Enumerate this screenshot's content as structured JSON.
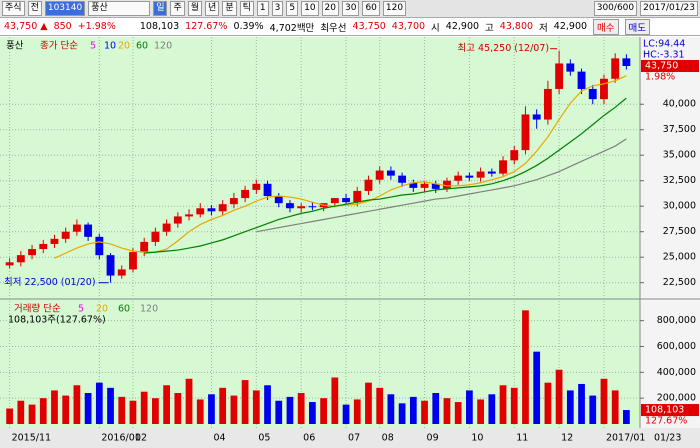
{
  "ui": {
    "toolbar": [
      "주식",
      "전",
      "103140",
      "풍산",
      "일",
      "주",
      "월",
      "년",
      "분",
      "틱",
      "1",
      "3",
      "5",
      "10",
      "20",
      "30",
      "60",
      "120",
      "300/600",
      "2017/01/23"
    ],
    "quote": {
      "price": "43,750 ▲",
      "change": "850",
      "rate": "+1.98%",
      "volume": "108,103",
      "vol_rate": "127.67%",
      "turnover": "0.39%",
      "amount": "4,702백만",
      "best": "최우선",
      "ask": "43,750",
      "bid": "43,700",
      "open_label": "시",
      "open": "42,900",
      "high_label": "고",
      "high": "43,800",
      "low_label": "저",
      "low": "42,900",
      "buy": "매수",
      "sell": "매도"
    }
  },
  "chart_data": [
    {
      "type": "candlestick",
      "title": "풍산",
      "categories": [
        "2015/11",
        null,
        null,
        null,
        null,
        null,
        null,
        null,
        "2016/01",
        null,
        null,
        "02",
        null,
        null,
        null,
        null,
        null,
        null,
        "04",
        null,
        null,
        null,
        "05",
        null,
        null,
        null,
        "06",
        null,
        null,
        null,
        "07",
        null,
        null,
        "08",
        null,
        null,
        null,
        "09",
        null,
        null,
        null,
        "10",
        null,
        null,
        null,
        "11",
        null,
        null,
        null,
        "12",
        null,
        null,
        null,
        "2017/01",
        null,
        "01/23"
      ],
      "open": [
        24200,
        24500,
        25200,
        25800,
        26300,
        26800,
        27500,
        28200,
        27000,
        25200,
        23200,
        23800,
        25500,
        26500,
        27500,
        28300,
        29000,
        29200,
        29800,
        29500,
        30200,
        30800,
        31600,
        32200,
        31000,
        30300,
        29800,
        30000,
        29900,
        30300,
        30800,
        30400,
        31500,
        32600,
        33500,
        33000,
        32300,
        31800,
        32200,
        31700,
        32500,
        33000,
        32800,
        33400,
        33200,
        34500,
        35500,
        39000,
        38500,
        41500,
        44000,
        43200,
        41500,
        40500,
        42500,
        44500
      ],
      "high": [
        24900,
        25600,
        26200,
        26700,
        27200,
        27900,
        28700,
        28400,
        27300,
        25400,
        24200,
        25900,
        26900,
        27900,
        28700,
        29400,
        29700,
        30300,
        30100,
        30600,
        31300,
        32000,
        32600,
        32500,
        31300,
        30600,
        30300,
        30400,
        30300,
        30800,
        31200,
        31900,
        33000,
        33900,
        33900,
        33300,
        32600,
        32500,
        32500,
        32800,
        33400,
        33300,
        33800,
        33700,
        34900,
        35900,
        39800,
        39500,
        42300,
        45250,
        44400,
        43500,
        41900,
        42900,
        45000,
        44900
      ],
      "low": [
        23900,
        24100,
        24800,
        25400,
        25900,
        26400,
        27100,
        26600,
        24800,
        22500,
        22900,
        23500,
        25100,
        26100,
        27100,
        27900,
        28600,
        28900,
        29100,
        29100,
        29800,
        30400,
        31200,
        30600,
        29900,
        29400,
        29400,
        29600,
        29500,
        29900,
        30100,
        30000,
        31100,
        32200,
        32600,
        31900,
        31400,
        31400,
        31300,
        31400,
        32100,
        32500,
        32400,
        32900,
        33000,
        34100,
        35100,
        37600,
        38000,
        41000,
        42800,
        41000,
        40000,
        40000,
        42100,
        43400
      ],
      "close": [
        24500,
        25200,
        25800,
        26300,
        26800,
        27500,
        28200,
        27000,
        25200,
        23200,
        23800,
        25500,
        26500,
        27500,
        28300,
        29000,
        29200,
        29800,
        29500,
        30200,
        30800,
        31600,
        32200,
        31000,
        30300,
        29800,
        30000,
        29900,
        30300,
        30800,
        30400,
        31500,
        32600,
        33500,
        33000,
        32300,
        31800,
        32200,
        31700,
        32500,
        33000,
        32800,
        33400,
        33200,
        34500,
        35500,
        39000,
        38500,
        41500,
        44000,
        43200,
        41500,
        40500,
        42500,
        44500,
        43750
      ],
      "up_color": "#e00000",
      "down_color": "#0000ee",
      "ma_title": "종가 단순",
      "ma_other": [
        {
          "name": "5",
          "color": "#ff00ff"
        },
        {
          "name": "10",
          "color": "#0000ff"
        }
      ],
      "series": [
        {
          "name": "20",
          "color": "#e8a800",
          "values": [
            null,
            null,
            null,
            null,
            24900,
            25400,
            25900,
            26300,
            26500,
            26300,
            25900,
            25600,
            25500,
            25500,
            25800,
            26600,
            27500,
            28200,
            28700,
            29100,
            29600,
            30000,
            30500,
            30900,
            31000,
            30900,
            30700,
            30400,
            30100,
            30000,
            30100,
            30200,
            30500,
            31000,
            31600,
            32000,
            32300,
            32400,
            32200,
            32000,
            32000,
            32100,
            32300,
            32600,
            32900,
            33400,
            34200,
            35400,
            36800,
            38500,
            40100,
            41300,
            41800,
            42000,
            42300,
            42800
          ]
        },
        {
          "name": "60",
          "color": "#008000",
          "values": [
            null,
            null,
            null,
            null,
            null,
            null,
            null,
            null,
            null,
            null,
            null,
            null,
            25400,
            25500,
            25600,
            25700,
            25900,
            26100,
            26400,
            26700,
            27100,
            27500,
            27900,
            28300,
            28700,
            29000,
            29300,
            29500,
            29800,
            30000,
            30200,
            30400,
            30600,
            30700,
            30900,
            31100,
            31200,
            31400,
            31600,
            31700,
            31800,
            31900,
            32000,
            32200,
            32500,
            32900,
            33400,
            34000,
            34700,
            35500,
            36300,
            37100,
            38000,
            38900,
            39700,
            40600
          ]
        },
        {
          "name": "120",
          "color": "#808080",
          "values": [
            null,
            null,
            null,
            null,
            null,
            null,
            null,
            null,
            null,
            null,
            null,
            null,
            null,
            null,
            null,
            null,
            null,
            null,
            null,
            null,
            null,
            null,
            27500,
            27700,
            27900,
            28100,
            28300,
            28500,
            28700,
            28900,
            29100,
            29300,
            29500,
            29700,
            29900,
            30100,
            30300,
            30500,
            30700,
            30800,
            31000,
            31200,
            31400,
            31600,
            31800,
            32000,
            32300,
            32600,
            33000,
            33400,
            33900,
            34400,
            34900,
            35400,
            35900,
            36600
          ]
        }
      ],
      "ylim": [
        21000,
        46300
      ],
      "yticks": [
        {
          "value": 22500,
          "label": "22,500"
        },
        {
          "value": 25000,
          "label": "25,000"
        },
        {
          "value": 27500,
          "label": "27,500"
        },
        {
          "value": 30000,
          "label": "30,000"
        },
        {
          "value": 32500,
          "label": "32,500"
        },
        {
          "value": 35000,
          "label": "35,000"
        },
        {
          "value": 37500,
          "label": "37,500"
        },
        {
          "value": 40000,
          "label": "40,000"
        }
      ],
      "grid": true,
      "high_note": "최고 45,250 (12/07)",
      "low_note": "최저 22,500 (01/20)",
      "lc": "LC:94.44",
      "hc": "HC:-3.31",
      "last_label": "43,750",
      "last_rate": "1.98%"
    },
    {
      "type": "bar",
      "title": "거래량 단순",
      "ma_legend": [
        {
          "name": "5",
          "color": "#ff00ff"
        },
        {
          "name": "20",
          "color": "#e8a800"
        },
        {
          "name": "60",
          "color": "#008000"
        },
        {
          "name": "120",
          "color": "#808080"
        }
      ],
      "current": "108,103주(127.67%)",
      "values": [
        120000,
        180000,
        150000,
        200000,
        260000,
        220000,
        300000,
        240000,
        320000,
        280000,
        210000,
        180000,
        250000,
        200000,
        300000,
        240000,
        350000,
        190000,
        230000,
        280000,
        220000,
        340000,
        260000,
        300000,
        180000,
        210000,
        240000,
        170000,
        200000,
        360000,
        150000,
        190000,
        320000,
        280000,
        230000,
        160000,
        210000,
        180000,
        240000,
        200000,
        170000,
        260000,
        190000,
        230000,
        300000,
        280000,
        880000,
        560000,
        320000,
        420000,
        260000,
        310000,
        220000,
        350000,
        260000,
        108103
      ],
      "ylim": [
        0,
        960000
      ],
      "yticks": [
        {
          "value": 200000,
          "label": "200,000"
        },
        {
          "value": 400000,
          "label": "400,000"
        },
        {
          "value": 600000,
          "label": "600,000"
        },
        {
          "value": 800000,
          "label": "800,000"
        }
      ],
      "last_label": "108,103",
      "last_rate": "127.67%"
    }
  ]
}
